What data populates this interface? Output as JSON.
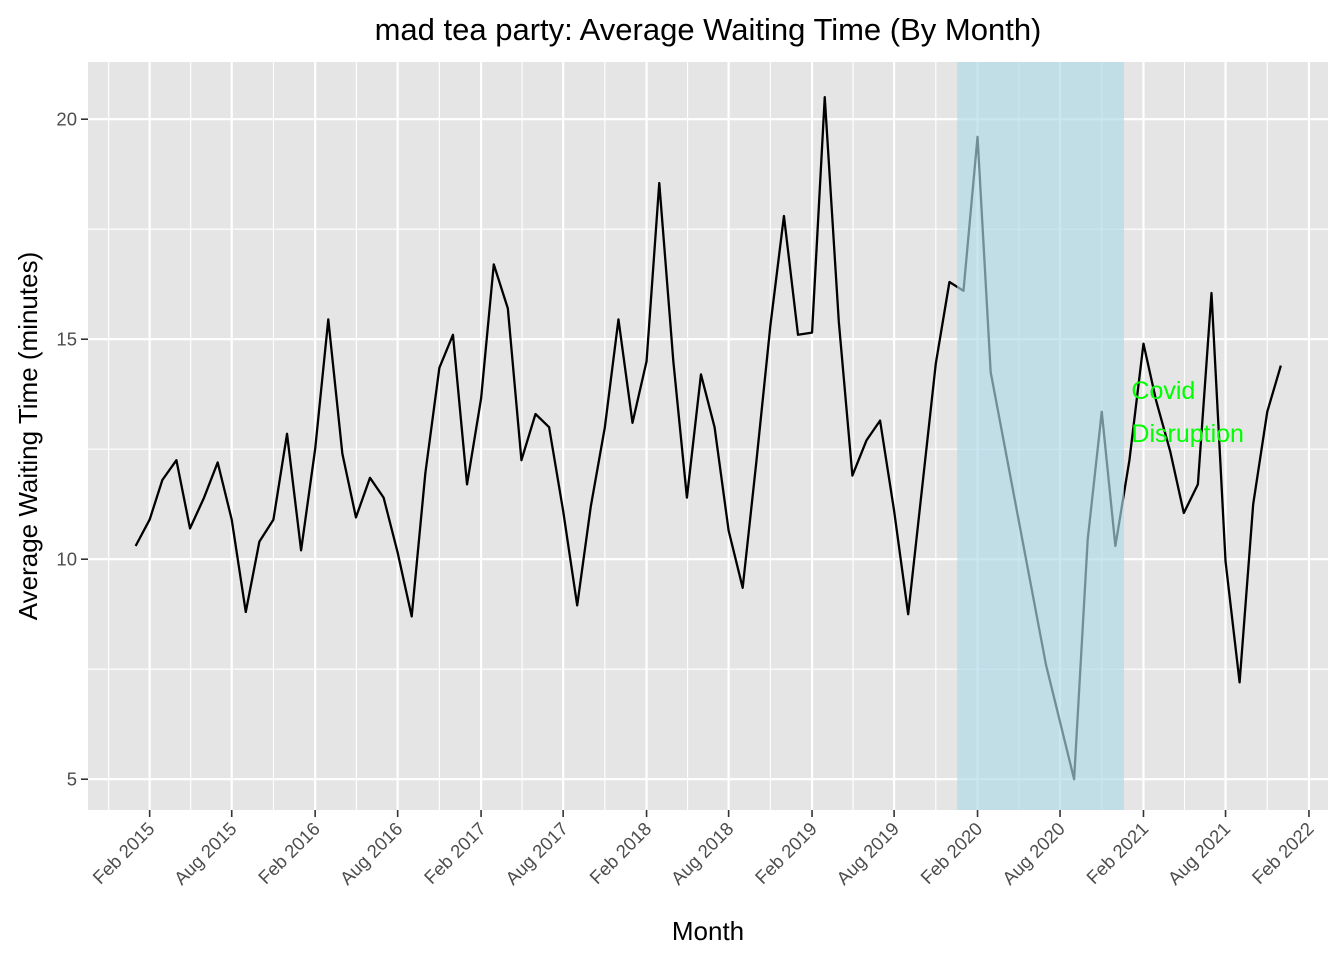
{
  "chart_data": {
    "type": "line",
    "title": "mad tea party: Average Waiting Time (By Month)",
    "xlabel": "Month",
    "ylabel": "Average Waiting Time (minutes)",
    "xlim": [
      "2014-09-18",
      "2022-03-15"
    ],
    "ylim": [
      4.3,
      21.3
    ],
    "x_ticks": [
      {
        "date": "2015-02-01",
        "label": "Feb 2015"
      },
      {
        "date": "2015-08-01",
        "label": "Aug 2015"
      },
      {
        "date": "2016-02-01",
        "label": "Feb 2016"
      },
      {
        "date": "2016-08-01",
        "label": "Aug 2016"
      },
      {
        "date": "2017-02-01",
        "label": "Feb 2017"
      },
      {
        "date": "2017-08-01",
        "label": "Aug 2017"
      },
      {
        "date": "2018-02-01",
        "label": "Feb 2018"
      },
      {
        "date": "2018-08-01",
        "label": "Aug 2018"
      },
      {
        "date": "2019-02-01",
        "label": "Feb 2019"
      },
      {
        "date": "2019-08-01",
        "label": "Aug 2019"
      },
      {
        "date": "2020-02-01",
        "label": "Feb 2020"
      },
      {
        "date": "2020-08-01",
        "label": "Aug 2020"
      },
      {
        "date": "2021-02-01",
        "label": "Feb 2021"
      },
      {
        "date": "2021-08-01",
        "label": "Aug 2021"
      },
      {
        "date": "2022-02-01",
        "label": "Feb 2022"
      }
    ],
    "y_ticks": [
      5,
      10,
      15,
      20
    ],
    "grid": true,
    "line_color": "#000000",
    "panel_background": "#e5e5e5",
    "gridline_color": "#ffffff",
    "series": [
      {
        "x": [
          "2015-01-01",
          "2015-02-01",
          "2015-03-01",
          "2015-04-01",
          "2015-05-01",
          "2015-06-01",
          "2015-07-01",
          "2015-08-01",
          "2015-09-01",
          "2015-10-01",
          "2015-11-01",
          "2015-12-01",
          "2016-01-01",
          "2016-02-01",
          "2016-03-01",
          "2016-04-01",
          "2016-05-01",
          "2016-06-01",
          "2016-07-01",
          "2016-08-01",
          "2016-09-01",
          "2016-10-01",
          "2016-11-01",
          "2016-12-01",
          "2017-01-01",
          "2017-02-01",
          "2017-03-01",
          "2017-04-01",
          "2017-05-01",
          "2017-06-01",
          "2017-07-01",
          "2017-08-01",
          "2017-09-01",
          "2017-10-01",
          "2017-11-01",
          "2017-12-01",
          "2018-01-01",
          "2018-02-01",
          "2018-03-01",
          "2018-04-01",
          "2018-05-01",
          "2018-06-01",
          "2018-07-01",
          "2018-08-01",
          "2018-09-01",
          "2018-10-01",
          "2018-11-01",
          "2018-12-01",
          "2019-01-01",
          "2019-02-01",
          "2019-03-01",
          "2019-04-01",
          "2019-05-01",
          "2019-06-01",
          "2019-07-01",
          "2019-08-01",
          "2019-09-01",
          "2019-10-01",
          "2019-11-01",
          "2019-12-01",
          "2020-01-01",
          "2020-02-01",
          "2020-03-01",
          "2020-07-01",
          "2020-09-01",
          "2020-10-01",
          "2020-11-01",
          "2020-12-01",
          "2021-01-01",
          "2021-02-01",
          "2021-03-01",
          "2021-04-01",
          "2021-05-01",
          "2021-06-01",
          "2021-07-01",
          "2021-08-01",
          "2021-09-01",
          "2021-10-01",
          "2021-11-01",
          "2021-12-01"
        ],
        "values": [
          10.3,
          10.9,
          11.8,
          12.25,
          10.7,
          11.4,
          12.2,
          10.9,
          8.8,
          10.4,
          10.9,
          12.85,
          10.2,
          12.5,
          15.45,
          12.4,
          10.95,
          11.85,
          11.4,
          10.15,
          8.7,
          11.95,
          14.35,
          15.1,
          11.7,
          13.65,
          16.7,
          15.7,
          12.25,
          13.3,
          13.0,
          11.1,
          8.95,
          11.2,
          13.0,
          15.45,
          13.1,
          14.5,
          18.55,
          14.5,
          11.4,
          14.2,
          13.0,
          10.65,
          9.35,
          12.2,
          15.3,
          17.8,
          15.1,
          15.15,
          20.5,
          15.4,
          11.9,
          12.7,
          13.15,
          11.1,
          8.75,
          11.55,
          14.45,
          16.3,
          16.1,
          19.6,
          14.25,
          7.6,
          5.0,
          10.45,
          13.35,
          10.3,
          12.25,
          14.9,
          13.6,
          12.45,
          11.05,
          11.7,
          16.05,
          9.95,
          7.2,
          11.25,
          13.35,
          14.4
        ]
      }
    ],
    "annotation": {
      "label_line1": "Covid",
      "label_line2": "Disruption",
      "shaded_start": "2019-12-18",
      "shaded_end": "2020-12-20",
      "shade_color": "#add8e6",
      "text_color": "#00ff00",
      "anchor_date": "2021-01-01",
      "anchor_value": 13.5
    }
  }
}
